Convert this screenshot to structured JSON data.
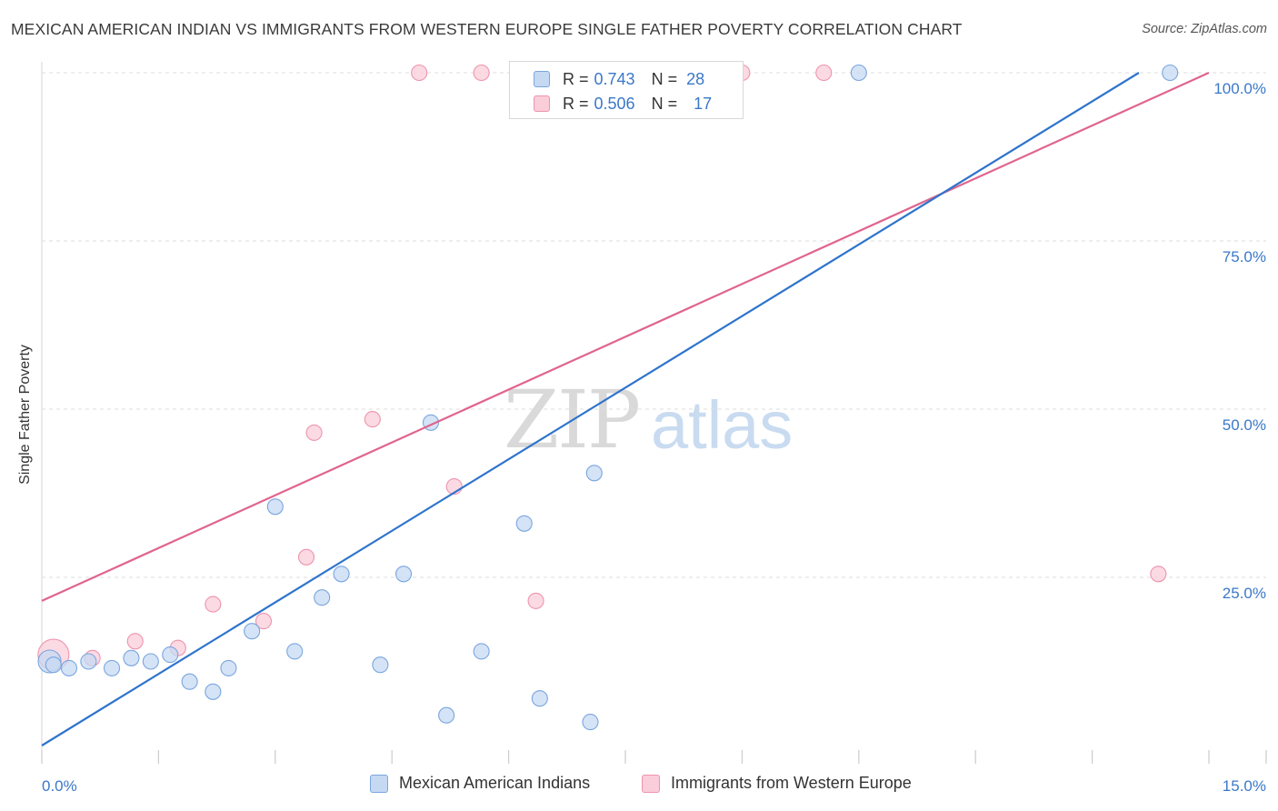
{
  "title": "MEXICAN AMERICAN INDIAN VS IMMIGRANTS FROM WESTERN EUROPE SINGLE FATHER POVERTY CORRELATION CHART",
  "source": "Source: ZipAtlas.com",
  "watermark": {
    "zip": "ZIP",
    "atlas": "atlas"
  },
  "legend": {
    "r_label": "R =",
    "n_label": "N =",
    "rows": [
      {
        "r": "0.743",
        "n": "28"
      },
      {
        "r": "0.506",
        "n": "17"
      }
    ]
  },
  "colors": {
    "blue_fill": "#c5d9f3",
    "blue_stroke": "#7aa6de",
    "blue_line": "#2e74cc",
    "pink_fill": "#f9cdd9",
    "pink_stroke": "#ee94ad",
    "pink_line": "#e0648d",
    "tick_label": "#3a78c9",
    "grid": "#dddddd"
  },
  "chart_data": {
    "type": "scatter",
    "title": "MEXICAN AMERICAN INDIAN VS IMMIGRANTS FROM WESTERN EUROPE SINGLE FATHER POVERTY CORRELATION CHART",
    "xlabel": "",
    "ylabel": "Single Father Poverty",
    "xlim": [
      0,
      15
    ],
    "ylim": [
      0,
      100
    ],
    "x_tick_labels": [
      "0.0%",
      "15.0%"
    ],
    "y_tick_labels": [
      "25.0%",
      "50.0%",
      "75.0%",
      "100.0%"
    ],
    "y_ticks": [
      25,
      50,
      75,
      100
    ],
    "grid": true,
    "legend_position": "top-center",
    "series": [
      {
        "name": "Mexican American Indians",
        "color": "#7aa6de",
        "points": [
          [
            0.1,
            12.5
          ],
          [
            0.35,
            11.5
          ],
          [
            0.6,
            12.5
          ],
          [
            0.9,
            11.5
          ],
          [
            1.15,
            13.0
          ],
          [
            1.4,
            12.5
          ],
          [
            1.65,
            13.5
          ],
          [
            1.9,
            9.5
          ],
          [
            2.2,
            8.0
          ],
          [
            2.4,
            11.5
          ],
          [
            2.7,
            17.0
          ],
          [
            3.0,
            35.5
          ],
          [
            3.25,
            14.0
          ],
          [
            3.6,
            22.0
          ],
          [
            3.85,
            25.5
          ],
          [
            4.35,
            12.0
          ],
          [
            4.65,
            25.5
          ],
          [
            5.0,
            48.0
          ],
          [
            5.2,
            4.5
          ],
          [
            5.65,
            14.0
          ],
          [
            6.2,
            33.0
          ],
          [
            6.4,
            7.0
          ],
          [
            7.05,
            3.5
          ],
          [
            7.1,
            40.5
          ],
          [
            8.05,
            100.0
          ],
          [
            10.5,
            100.0
          ],
          [
            14.5,
            100.0
          ],
          [
            0.15,
            12.0
          ]
        ]
      },
      {
        "name": "Immigrants from Western Europe",
        "color": "#ee94ad",
        "points": [
          [
            0.15,
            13.5
          ],
          [
            0.65,
            13.0
          ],
          [
            1.2,
            15.5
          ],
          [
            1.75,
            14.5
          ],
          [
            2.2,
            21.0
          ],
          [
            2.85,
            18.5
          ],
          [
            3.4,
            28.0
          ],
          [
            3.5,
            46.5
          ],
          [
            4.25,
            48.5
          ],
          [
            4.85,
            100.0
          ],
          [
            5.3,
            38.5
          ],
          [
            5.65,
            100.0
          ],
          [
            6.35,
            21.5
          ],
          [
            9.0,
            100.0
          ],
          [
            10.05,
            100.0
          ],
          [
            14.35,
            25.5
          ],
          [
            7.2,
            100.0
          ]
        ]
      }
    ],
    "trend_lines": [
      {
        "series": "Mexican American Indians",
        "from": [
          0,
          0
        ],
        "to": [
          14.1,
          100
        ]
      },
      {
        "series": "Immigrants from Western Europe",
        "from": [
          0,
          21.5
        ],
        "to": [
          15,
          100
        ]
      }
    ]
  }
}
